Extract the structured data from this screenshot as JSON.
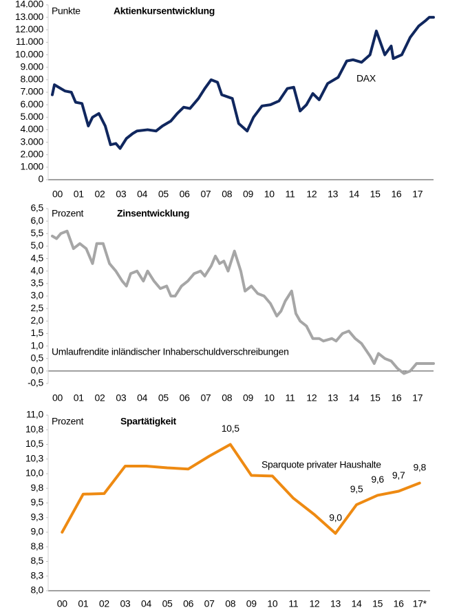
{
  "chart_data": [
    {
      "type": "line",
      "title": "Aktienkursentwicklung",
      "y_unit_label": "Punkte",
      "annotation": "DAX",
      "xlim": [
        0,
        18
      ],
      "xticks": [
        {
          "value": 0,
          "label": "00"
        },
        {
          "value": 1,
          "label": "01"
        },
        {
          "value": 2,
          "label": "02"
        },
        {
          "value": 3,
          "label": "03"
        },
        {
          "value": 4,
          "label": "04"
        },
        {
          "value": 5,
          "label": "05"
        },
        {
          "value": 6,
          "label": "06"
        },
        {
          "value": 7,
          "label": "07"
        },
        {
          "value": 8,
          "label": "08"
        },
        {
          "value": 9,
          "label": "09"
        },
        {
          "value": 10,
          "label": "10"
        },
        {
          "value": 11,
          "label": "11"
        },
        {
          "value": 12,
          "label": "12"
        },
        {
          "value": 13,
          "label": "13"
        },
        {
          "value": 14,
          "label": "14"
        },
        {
          "value": 15,
          "label": "15"
        },
        {
          "value": 16,
          "label": "16"
        },
        {
          "value": 17,
          "label": "17"
        }
      ],
      "ylim": [
        0,
        14000
      ],
      "yticks": [
        0,
        {
          "value": 1000,
          "label": "1.000"
        },
        {
          "value": 2000,
          "label": "2.000"
        },
        {
          "value": 3000,
          "label": "3.000"
        },
        {
          "value": 4000,
          "label": "4.000"
        },
        {
          "value": 5000,
          "label": "5.000"
        },
        {
          "value": 6000,
          "label": "6.000"
        },
        {
          "value": 7000,
          "label": "7.000"
        },
        {
          "value": 8000,
          "label": "8.000"
        },
        {
          "value": 9000,
          "label": "9.000"
        },
        {
          "value": 10000,
          "label": "10.000"
        },
        {
          "value": 11000,
          "label": "11.000"
        },
        {
          "value": 12000,
          "label": "12.000"
        },
        {
          "value": 13000,
          "label": "13.000"
        },
        {
          "value": 14000,
          "label": "14.000"
        }
      ],
      "grid": false,
      "x": [
        0,
        0.1,
        0.3,
        0.6,
        0.9,
        1.1,
        1.4,
        1.7,
        1.9,
        2.2,
        2.5,
        2.75,
        3.0,
        3.2,
        3.5,
        3.8,
        4.0,
        4.5,
        4.9,
        5.2,
        5.6,
        5.9,
        6.2,
        6.5,
        6.9,
        7.2,
        7.5,
        7.8,
        8.0,
        8.5,
        8.8,
        9.2,
        9.5,
        9.9,
        10.3,
        10.7,
        11.1,
        11.4,
        11.7,
        12.0,
        12.3,
        12.6,
        13.0,
        13.5,
        13.9,
        14.2,
        14.6,
        15.0,
        15.3,
        15.7,
        16.0,
        16.1,
        16.5,
        16.9,
        17.3,
        17.6,
        17.8,
        18.0
      ],
      "series": [
        {
          "name": "DAX",
          "color": "#10275e",
          "values": [
            6800,
            7600,
            7400,
            7100,
            7000,
            6200,
            6100,
            4300,
            5000,
            5300,
            4300,
            2800,
            2900,
            2500,
            3300,
            3700,
            3900,
            4000,
            3900,
            4300,
            4700,
            5300,
            5800,
            5700,
            6500,
            7300,
            8000,
            7800,
            6800,
            6500,
            4500,
            3900,
            5000,
            5900,
            6000,
            6300,
            7300,
            7400,
            5500,
            6000,
            6900,
            6400,
            7700,
            8200,
            9500,
            9600,
            9400,
            10000,
            11900,
            10000,
            10700,
            9700,
            10000,
            11400,
            12300,
            12700,
            13000,
            13000
          ]
        }
      ]
    },
    {
      "type": "line",
      "title": "Zinsentwicklung",
      "y_unit_label": "Prozent",
      "annotation": "Umlaufrendite inländischer Inhaberschuldverschreibungen",
      "xlim": [
        0,
        18
      ],
      "xticks": [
        {
          "value": 0,
          "label": "00"
        },
        {
          "value": 1,
          "label": "01"
        },
        {
          "value": 2,
          "label": "02"
        },
        {
          "value": 3,
          "label": "03"
        },
        {
          "value": 4,
          "label": "04"
        },
        {
          "value": 5,
          "label": "05"
        },
        {
          "value": 6,
          "label": "06"
        },
        {
          "value": 7,
          "label": "07"
        },
        {
          "value": 8,
          "label": "08"
        },
        {
          "value": 9,
          "label": "09"
        },
        {
          "value": 10,
          "label": "10"
        },
        {
          "value": 11,
          "label": "11"
        },
        {
          "value": 12,
          "label": "12"
        },
        {
          "value": 13,
          "label": "13"
        },
        {
          "value": 14,
          "label": "14"
        },
        {
          "value": 15,
          "label": "15"
        },
        {
          "value": 16,
          "label": "16"
        },
        {
          "value": 17,
          "label": "17"
        }
      ],
      "ylim": [
        -0.5,
        6.5
      ],
      "yticks": [
        {
          "value": -0.5,
          "label": "-0,5"
        },
        {
          "value": 0,
          "label": "0,0"
        },
        {
          "value": 0.5,
          "label": "0,5"
        },
        {
          "value": 1,
          "label": "1,0"
        },
        {
          "value": 1.5,
          "label": "1,5"
        },
        {
          "value": 2,
          "label": "2,0"
        },
        {
          "value": 2.5,
          "label": "2,5"
        },
        {
          "value": 3,
          "label": "3,0"
        },
        {
          "value": 3.5,
          "label": "3,5"
        },
        {
          "value": 4,
          "label": "4,0"
        },
        {
          "value": 4.5,
          "label": "4,5"
        },
        {
          "value": 5,
          "label": "5,0"
        },
        {
          "value": 5.5,
          "label": "5,5"
        },
        {
          "value": 6,
          "label": "6,0"
        },
        {
          "value": 6.5,
          "label": "6,5"
        }
      ],
      "grid": false,
      "x": [
        0,
        0.2,
        0.4,
        0.7,
        1.0,
        1.3,
        1.6,
        1.9,
        2.1,
        2.4,
        2.7,
        3.0,
        3.3,
        3.5,
        3.7,
        4.0,
        4.3,
        4.5,
        4.8,
        5.1,
        5.4,
        5.6,
        5.8,
        6.1,
        6.4,
        6.7,
        7.0,
        7.2,
        7.5,
        7.7,
        7.9,
        8.1,
        8.3,
        8.6,
        8.9,
        9.1,
        9.4,
        9.7,
        10.0,
        10.3,
        10.6,
        10.8,
        11.0,
        11.3,
        11.5,
        11.7,
        12.0,
        12.3,
        12.6,
        12.8,
        13.2,
        13.4,
        13.7,
        14.0,
        14.3,
        14.6,
        15.0,
        15.2,
        15.4,
        15.7,
        16.0,
        16.3,
        16.6,
        16.9,
        17.2,
        17.5,
        17.8,
        18.0
      ],
      "series": [
        {
          "name": "Umlaufrendite inländischer Inhaberschuldverschreibungen",
          "color": "#a6a6a6",
          "values": [
            5.4,
            5.3,
            5.5,
            5.6,
            4.9,
            5.1,
            4.9,
            4.3,
            5.1,
            5.1,
            4.3,
            4.0,
            3.6,
            3.4,
            3.9,
            4.0,
            3.6,
            4.0,
            3.6,
            3.3,
            3.4,
            3.0,
            3.0,
            3.4,
            3.6,
            3.9,
            4.0,
            3.8,
            4.2,
            4.6,
            4.3,
            4.4,
            4.0,
            4.8,
            4.0,
            3.2,
            3.4,
            3.1,
            3.0,
            2.7,
            2.2,
            2.4,
            2.8,
            3.2,
            2.3,
            2.0,
            1.8,
            1.3,
            1.3,
            1.2,
            1.3,
            1.2,
            1.5,
            1.6,
            1.3,
            1.1,
            0.6,
            0.3,
            0.7,
            0.5,
            0.4,
            0.1,
            -0.1,
            0.0,
            0.3,
            0.3,
            0.3,
            0.3
          ]
        }
      ]
    },
    {
      "type": "line",
      "title": "Spartätigkeit",
      "y_unit_label": "Prozent",
      "annotation": "Sparquote privater Haushalte",
      "categories": [
        "00",
        "01",
        "02",
        "03",
        "04",
        "05",
        "06",
        "07",
        "08",
        "09",
        "10",
        "11",
        "12",
        "13",
        "14",
        "15",
        "16",
        "17*"
      ],
      "ylim": [
        8.0,
        11.0
      ],
      "yticks": [
        {
          "value": 8,
          "label": "8,0"
        },
        {
          "value": 8.25,
          "label": "8,3"
        },
        {
          "value": 8.5,
          "label": "8,5"
        },
        {
          "value": 8.75,
          "label": "8,8"
        },
        {
          "value": 9,
          "label": "9,0"
        },
        {
          "value": 9.25,
          "label": "9,3"
        },
        {
          "value": 9.5,
          "label": "9,5"
        },
        {
          "value": 9.75,
          "label": "9,8"
        },
        {
          "value": 10,
          "label": "10,0"
        },
        {
          "value": 10.25,
          "label": "10,3"
        },
        {
          "value": 10.5,
          "label": "10,5"
        },
        {
          "value": 10.75,
          "label": "10,8"
        },
        {
          "value": 11,
          "label": "11,0"
        }
      ],
      "grid": false,
      "series": [
        {
          "name": "Sparquote privater Haushalte",
          "color": "#ee8a12",
          "values": [
            9.0,
            9.65,
            9.66,
            10.13,
            10.13,
            10.1,
            10.08,
            10.3,
            10.5,
            9.97,
            9.96,
            9.58,
            9.3,
            8.98,
            9.47,
            9.63,
            9.7,
            9.84
          ],
          "value_labels": [
            null,
            null,
            null,
            null,
            null,
            null,
            null,
            null,
            "10,5",
            null,
            null,
            null,
            null,
            "9,0",
            "9,5",
            "9,6",
            "9,7",
            "9,8"
          ]
        }
      ]
    }
  ]
}
